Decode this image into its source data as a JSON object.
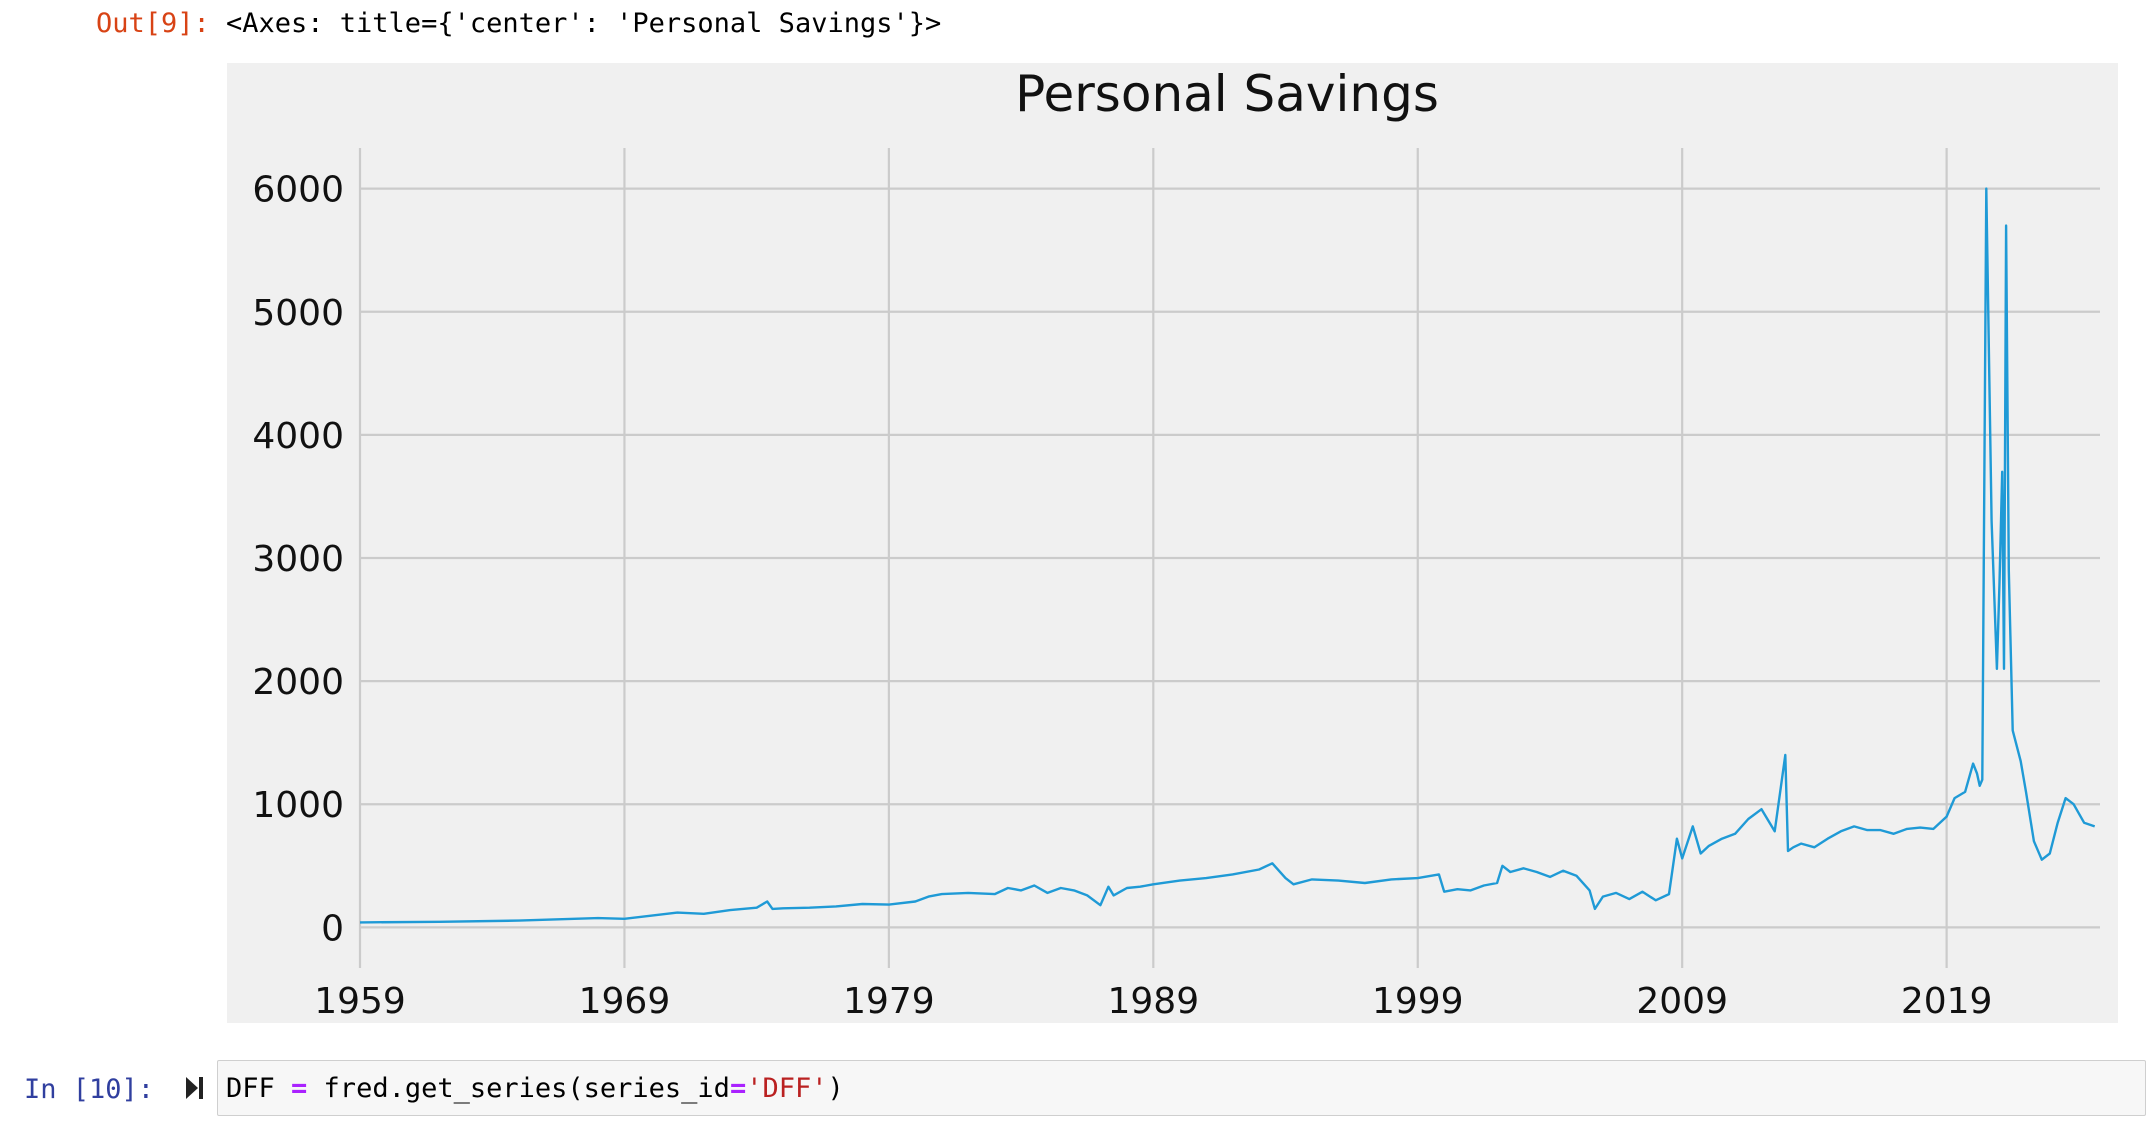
{
  "output_cell": {
    "prompt": "Out[9]:",
    "repr": "<Axes: title={'center': 'Personal Savings'}>"
  },
  "input_cell": {
    "prompt": "In [10]:",
    "code": {
      "var": "DFF ",
      "op": "=",
      "call": " fred.get_series(series_id",
      "op2": "=",
      "str": "'DFF'",
      "close": ")"
    }
  },
  "colors": {
    "line": "#1f9ad6",
    "plot_bg": "#f0f0f0",
    "grid": "#cbcbcb"
  },
  "chart_data": {
    "type": "line",
    "title": "Personal Savings",
    "xlabel": "",
    "ylabel": "",
    "xlim": [
      1959.0,
      2024.8
    ],
    "ylim": [
      -330,
      6330
    ],
    "xticks": [
      1959,
      1969,
      1979,
      1989,
      1999,
      2009,
      2019
    ],
    "yticks": [
      0,
      1000,
      2000,
      3000,
      4000,
      5000,
      6000
    ],
    "grid": true,
    "x": [
      1959.0,
      1962.0,
      1965.0,
      1968.0,
      1969.0,
      1970.0,
      1971.0,
      1972.0,
      1973.0,
      1974.0,
      1974.4,
      1974.6,
      1975.0,
      1976.0,
      1977.0,
      1978.0,
      1979.0,
      1980.0,
      1980.5,
      1981.0,
      1982.0,
      1983.0,
      1983.5,
      1984.0,
      1984.5,
      1985.0,
      1985.5,
      1986.0,
      1986.5,
      1987.0,
      1987.3,
      1987.5,
      1988.0,
      1988.5,
      1989.0,
      1990.0,
      1991.0,
      1992.0,
      1993.0,
      1993.5,
      1994.0,
      1994.3,
      1995.0,
      1996.0,
      1997.0,
      1998.0,
      1999.0,
      1999.8,
      2000.0,
      2000.5,
      2001.0,
      2001.5,
      2002.0,
      2002.2,
      2002.5,
      2003.0,
      2003.5,
      2004.0,
      2004.5,
      2005.0,
      2005.5,
      2005.7,
      2006.0,
      2006.5,
      2007.0,
      2007.5,
      2008.0,
      2008.5,
      2008.8,
      2009.0,
      2009.4,
      2009.7,
      2010.0,
      2010.5,
      2011.0,
      2011.5,
      2012.0,
      2012.5,
      2012.9,
      2013.0,
      2013.2,
      2013.5,
      2014.0,
      2014.5,
      2015.0,
      2015.5,
      2016.0,
      2016.5,
      2017.0,
      2017.5,
      2018.0,
      2018.5,
      2019.0,
      2019.3,
      2019.7,
      2020.0,
      2020.15,
      2020.25,
      2020.35,
      2020.5,
      2020.7,
      2020.9,
      2021.0,
      2021.1,
      2021.17,
      2021.25,
      2021.35,
      2021.5,
      2021.8,
      2022.0,
      2022.3,
      2022.6,
      2022.9,
      2023.2,
      2023.5,
      2023.8,
      2024.2,
      2024.6
    ],
    "y": [
      40,
      45,
      55,
      75,
      70,
      95,
      120,
      110,
      140,
      160,
      210,
      150,
      155,
      160,
      170,
      190,
      185,
      210,
      250,
      270,
      280,
      270,
      320,
      300,
      340,
      280,
      320,
      300,
      260,
      180,
      330,
      260,
      320,
      330,
      350,
      380,
      400,
      430,
      470,
      520,
      400,
      350,
      390,
      380,
      360,
      390,
      400,
      430,
      290,
      310,
      300,
      340,
      360,
      500,
      450,
      480,
      450,
      410,
      460,
      420,
      300,
      150,
      250,
      280,
      230,
      290,
      220,
      270,
      720,
      560,
      820,
      600,
      660,
      720,
      760,
      880,
      960,
      780,
      1400,
      620,
      650,
      680,
      650,
      720,
      780,
      820,
      790,
      790,
      760,
      800,
      810,
      800,
      900,
      1050,
      1100,
      1330,
      1250,
      1150,
      1200,
      6000,
      3300,
      2100,
      2800,
      3700,
      2100,
      5700,
      2900,
      1600,
      1350,
      1100,
      700,
      550,
      600,
      850,
      1050,
      1000,
      850,
      820
    ]
  }
}
